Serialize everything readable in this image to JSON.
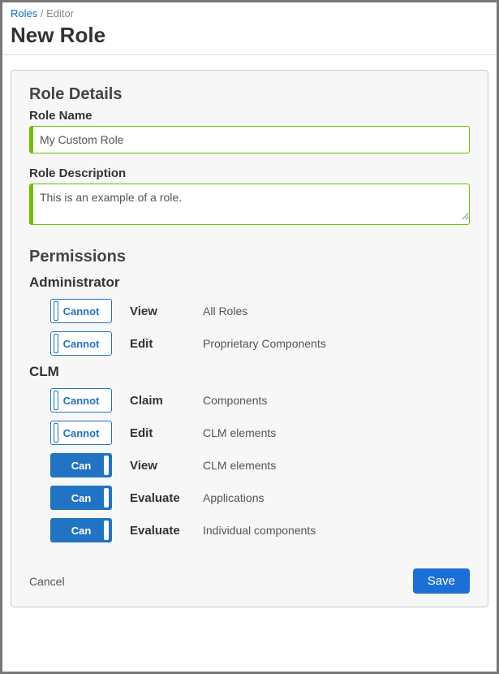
{
  "breadcrumb": {
    "root": "Roles",
    "current": "Editor"
  },
  "page_title": "New Role",
  "role_details": {
    "section_title": "Role Details",
    "name_label": "Role Name",
    "name_value": "My Custom Role",
    "desc_label": "Role Description",
    "desc_value": "This is an example of a role."
  },
  "permissions": {
    "title": "Permissions",
    "toggle_labels": {
      "can": "Can",
      "cannot": "Cannot"
    },
    "groups": [
      {
        "title": "Administrator",
        "rows": [
          {
            "state": "cannot",
            "action": "View",
            "target": "All Roles"
          },
          {
            "state": "cannot",
            "action": "Edit",
            "target": "Proprietary Components"
          }
        ]
      },
      {
        "title": "CLM",
        "rows": [
          {
            "state": "cannot",
            "action": "Claim",
            "target": "Components"
          },
          {
            "state": "cannot",
            "action": "Edit",
            "target": "CLM elements"
          },
          {
            "state": "can",
            "action": "View",
            "target": "CLM elements"
          },
          {
            "state": "can",
            "action": "Evaluate",
            "target": "Applications"
          },
          {
            "state": "can",
            "action": "Evaluate",
            "target": "Individual components"
          }
        ]
      }
    ]
  },
  "buttons": {
    "cancel": "Cancel",
    "save": "Save"
  },
  "colors": {
    "accent_blue": "#1d6fd8",
    "toggle_border": "#2173c4",
    "input_border_green": "#6fbf00",
    "panel_bg": "#f7f7f7",
    "panel_border": "#cccccc",
    "text_primary": "#333333",
    "text_secondary": "#555555"
  }
}
